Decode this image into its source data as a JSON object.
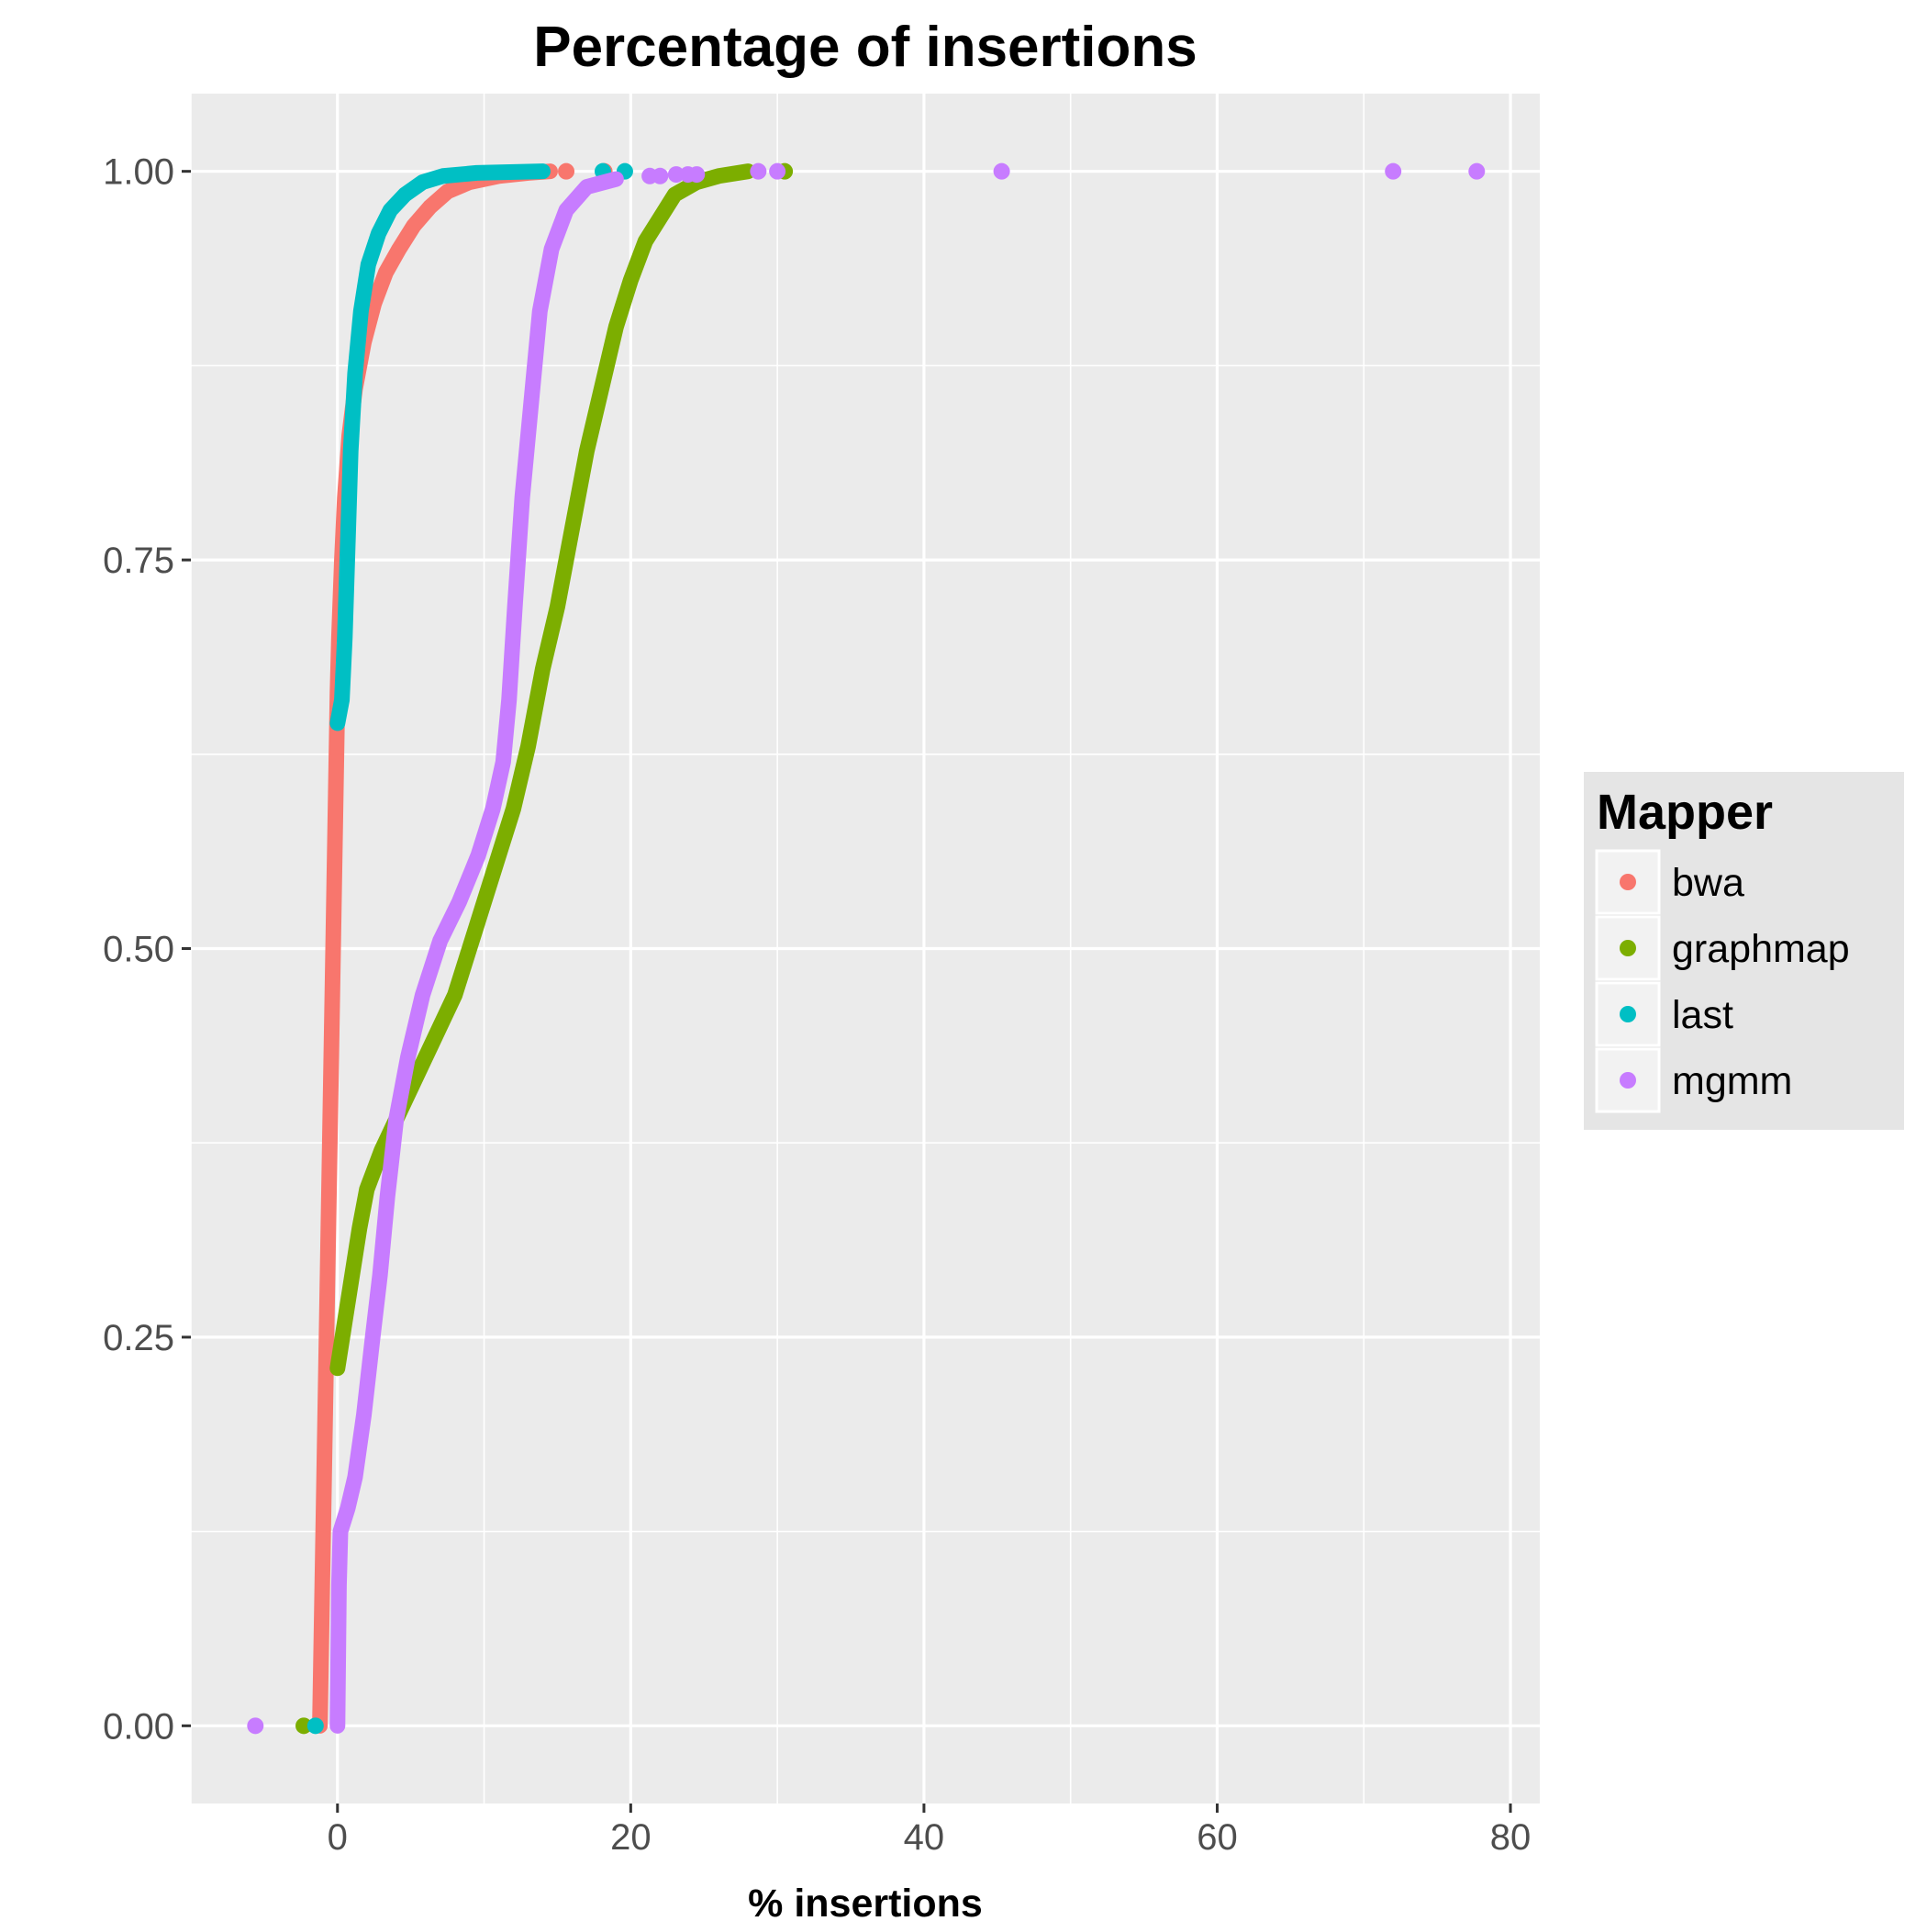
{
  "chart_data": {
    "type": "scatter",
    "title": "Percentage of insertions",
    "xlabel": "% insertions",
    "ylabel": "",
    "xlim": [
      -10,
      82
    ],
    "ylim": [
      -0.05,
      1.05
    ],
    "x_ticks": [
      0,
      20,
      40,
      60,
      80
    ],
    "x_minor_ticks": [
      -10,
      10,
      30,
      50,
      70
    ],
    "y_ticks": [
      0.0,
      0.25,
      0.5,
      0.75,
      1.0
    ],
    "y_tick_labels": [
      "0.00",
      "0.25",
      "0.50",
      "0.75",
      "1.00"
    ],
    "y_minor_ticks": [
      0.125,
      0.375,
      0.625,
      0.875
    ],
    "grid": true,
    "background": "#ebebeb",
    "legend": {
      "title": "Mapper",
      "position": "right"
    },
    "series": [
      {
        "name": "bwa",
        "color": "#f8766d",
        "curve": [
          [
            -1.2,
            0.0
          ],
          [
            0.0,
            0.665
          ],
          [
            0.1,
            0.7
          ],
          [
            0.3,
            0.75
          ],
          [
            0.5,
            0.79
          ],
          [
            0.8,
            0.83
          ],
          [
            1.2,
            0.86
          ],
          [
            1.8,
            0.89
          ],
          [
            2.5,
            0.915
          ],
          [
            3.3,
            0.935
          ],
          [
            4.2,
            0.95
          ],
          [
            5.2,
            0.965
          ],
          [
            6.3,
            0.977
          ],
          [
            7.5,
            0.987
          ],
          [
            9.0,
            0.993
          ],
          [
            11.0,
            0.997
          ],
          [
            13.0,
            0.999
          ],
          [
            14.5,
            1.0
          ]
        ],
        "points": [
          [
            15.6,
            1.0
          ],
          [
            18.2,
            1.0
          ]
        ]
      },
      {
        "name": "graphmap",
        "color": "#7cae00",
        "curve": [
          [
            0.0,
            0.23
          ],
          [
            0.5,
            0.26
          ],
          [
            1.0,
            0.29
          ],
          [
            1.5,
            0.32
          ],
          [
            2.0,
            0.345
          ],
          [
            3.0,
            0.37
          ],
          [
            4.0,
            0.39
          ],
          [
            5.0,
            0.41
          ],
          [
            6.0,
            0.43
          ],
          [
            7.0,
            0.45
          ],
          [
            8.0,
            0.47
          ],
          [
            9.0,
            0.5
          ],
          [
            10.0,
            0.53
          ],
          [
            11.0,
            0.56
          ],
          [
            12.0,
            0.59
          ],
          [
            13.0,
            0.63
          ],
          [
            14.0,
            0.68
          ],
          [
            15.0,
            0.72
          ],
          [
            16.0,
            0.77
          ],
          [
            17.0,
            0.82
          ],
          [
            18.0,
            0.86
          ],
          [
            19.0,
            0.9
          ],
          [
            20.0,
            0.93
          ],
          [
            21.0,
            0.955
          ],
          [
            22.0,
            0.97
          ],
          [
            23.0,
            0.985
          ],
          [
            24.5,
            0.993
          ],
          [
            26.0,
            0.997
          ],
          [
            28.0,
            1.0
          ]
        ],
        "points": [
          [
            -2.3,
            0.0
          ],
          [
            30.5,
            1.0
          ]
        ]
      },
      {
        "name": "last",
        "color": "#00bfc4",
        "curve": [
          [
            0.0,
            0.645
          ],
          [
            0.3,
            0.66
          ],
          [
            0.5,
            0.7
          ],
          [
            0.7,
            0.76
          ],
          [
            0.9,
            0.82
          ],
          [
            1.2,
            0.87
          ],
          [
            1.6,
            0.91
          ],
          [
            2.1,
            0.94
          ],
          [
            2.8,
            0.96
          ],
          [
            3.6,
            0.975
          ],
          [
            4.6,
            0.985
          ],
          [
            5.8,
            0.993
          ],
          [
            7.2,
            0.997
          ],
          [
            9.5,
            0.999
          ],
          [
            14.0,
            1.0
          ]
        ],
        "points": [
          [
            -1.5,
            0.0
          ],
          [
            18.1,
            1.0
          ],
          [
            19.6,
            1.0
          ]
        ]
      },
      {
        "name": "mgmm",
        "color": "#c77cff",
        "curve": [
          [
            0.0,
            0.0
          ],
          [
            0.1,
            0.09
          ],
          [
            0.2,
            0.125
          ],
          [
            0.7,
            0.14
          ],
          [
            1.2,
            0.16
          ],
          [
            1.8,
            0.2
          ],
          [
            2.4,
            0.25
          ],
          [
            2.9,
            0.29
          ],
          [
            3.4,
            0.34
          ],
          [
            4.0,
            0.39
          ],
          [
            4.8,
            0.43
          ],
          [
            5.8,
            0.47
          ],
          [
            7.0,
            0.505
          ],
          [
            8.3,
            0.53
          ],
          [
            9.6,
            0.56
          ],
          [
            10.6,
            0.59
          ],
          [
            11.3,
            0.62
          ],
          [
            11.7,
            0.66
          ],
          [
            12.1,
            0.72
          ],
          [
            12.6,
            0.79
          ],
          [
            13.2,
            0.85
          ],
          [
            13.8,
            0.91
          ],
          [
            14.6,
            0.95
          ],
          [
            15.6,
            0.975
          ],
          [
            17.0,
            0.99
          ],
          [
            19.0,
            0.995
          ]
        ],
        "points": [
          [
            -5.6,
            0.0
          ],
          [
            21.3,
            0.997
          ],
          [
            22.0,
            0.997
          ],
          [
            23.1,
            0.998
          ],
          [
            23.9,
            0.998
          ],
          [
            24.5,
            0.998
          ],
          [
            28.7,
            1.0
          ],
          [
            30.0,
            1.0
          ],
          [
            45.3,
            1.0
          ],
          [
            72.0,
            1.0
          ],
          [
            77.7,
            1.0
          ]
        ]
      }
    ]
  }
}
